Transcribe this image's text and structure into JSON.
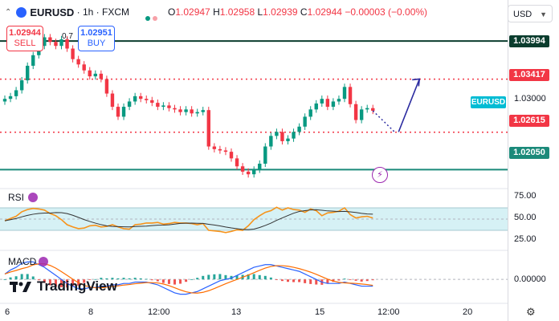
{
  "header": {
    "symbol": "EURUSD",
    "interval": "1h",
    "broker": "FXCM",
    "open_label": "O",
    "open": "1.02947",
    "high_label": "H",
    "high": "1.02958",
    "low_label": "L",
    "low": "1.02939",
    "close_label": "C",
    "close": "1.02944",
    "change": "−0.00003 (−0.00%)"
  },
  "trade": {
    "sell_price": "1.02944",
    "sell_label": "SELL",
    "buy_price": "1.02951",
    "buy_label": "BUY",
    "spread": "0.7"
  },
  "price_axis": {
    "currency": "USD",
    "ticks": [
      "1.03000"
    ],
    "symbol_tag": "EURUSD",
    "levels": [
      {
        "price": 1.03994,
        "label": "1.03994",
        "color": "#0b3d2e",
        "style": "solid"
      },
      {
        "price": 1.03417,
        "label": "1.03417",
        "color": "#f23645",
        "style": "dotted"
      },
      {
        "price": 1.02615,
        "label": "1.02615",
        "color": "#f23645",
        "style": "dotted"
      },
      {
        "price": 1.0205,
        "label": "1.02050",
        "color": "#1b8a7a",
        "style": "solid"
      }
    ]
  },
  "rsi": {
    "label": "RSI",
    "ticks": [
      "75.00",
      "50.00",
      "25.00"
    ],
    "band": [
      30,
      70
    ]
  },
  "macd": {
    "label": "MACD",
    "tick": "0.00000"
  },
  "time_axis": {
    "labels": [
      "6",
      "8",
      "12:00",
      "13",
      "15",
      "12:00",
      "20"
    ]
  },
  "branding": {
    "logo_text": "TradingView"
  },
  "colors": {
    "up": "#089981",
    "down": "#f23645",
    "rsi_line": "#f7931a",
    "rsi_ma": "#333333",
    "macd_line": "#2962ff",
    "signal_line": "#ff6d00",
    "arrow": "#2b2ba0"
  },
  "chart_data": {
    "type": "candlestick",
    "timeframe": "1h",
    "price_range": [
      1.018,
      1.0425
    ],
    "close_series": [
      1.0312,
      1.0316,
      1.0325,
      1.034,
      1.0362,
      1.0378,
      1.0392,
      1.0405,
      1.0398,
      1.0392,
      1.0402,
      1.0388,
      1.0372,
      1.0364,
      1.0355,
      1.0346,
      1.035,
      1.0342,
      1.032,
      1.03,
      1.0285,
      1.03,
      1.0308,
      1.0316,
      1.0312,
      1.031,
      1.0306,
      1.03,
      1.0302,
      1.0298,
      1.0296,
      1.0292,
      1.0296,
      1.029,
      1.0292,
      1.0295,
      1.024,
      1.0236,
      1.0234,
      1.0232,
      1.0222,
      1.021,
      1.0202,
      1.0198,
      1.0205,
      1.0214,
      1.024,
      1.0256,
      1.0262,
      1.0248,
      1.0252,
      1.0262,
      1.027,
      1.0285,
      1.0296,
      1.0305,
      1.0312,
      1.03,
      1.0308,
      1.0312,
      1.033,
      1.0304,
      1.028,
      1.0296,
      1.0298,
      1.0294
    ],
    "forecast": {
      "from": 1.0294,
      "via": 1.0262,
      "to": 1.0342
    },
    "rsi_range": [
      0,
      100
    ],
    "rsi_values": [
      47,
      51,
      55,
      63,
      67,
      69,
      68,
      66,
      60,
      56,
      49,
      40,
      36,
      33,
      34,
      38,
      39,
      36,
      37,
      40,
      36,
      33,
      32,
      40,
      41,
      43,
      43,
      44,
      41,
      42,
      44,
      43,
      43,
      42,
      40,
      42,
      30,
      29,
      28,
      26,
      28,
      31,
      30,
      38,
      49,
      56,
      62,
      65,
      71,
      66,
      70,
      67,
      66,
      62,
      68,
      65,
      56,
      61,
      62,
      64,
      70,
      58,
      52,
      54,
      55,
      52
    ],
    "macd_values": [
      0.0004,
      0.0007,
      0.0009,
      0.0012,
      0.0013,
      0.0013,
      0.0011,
      0.0009,
      0.0006,
      0.0003,
      0.0,
      -0.0003,
      -0.0005,
      -0.0007,
      -0.0007,
      -0.0006,
      -0.0006,
      -0.0005,
      -0.0005,
      -0.0004,
      -0.0004,
      -0.0003,
      -0.0003,
      -0.0002,
      -0.0002,
      -0.0002,
      -0.0003,
      -0.0004,
      -0.0006,
      -0.0008,
      -0.001,
      -0.0011,
      -0.0011,
      -0.001,
      -0.0009,
      -0.0007,
      -0.0005,
      -0.0003,
      -0.0001,
      0.0,
      0.0001,
      0.0003,
      0.0005,
      0.0007,
      0.0009,
      0.001,
      0.0011,
      0.0011,
      0.001,
      0.0009,
      0.0008,
      0.0007,
      0.0006,
      0.0004,
      0.0002,
      0.0,
      -0.0002,
      -0.0003,
      -0.0003,
      -0.0003,
      -0.0002,
      -0.0003,
      -0.0004,
      -0.0005,
      -0.0005,
      -0.0005
    ],
    "macd_range": [
      -0.0016,
      0.0018
    ]
  }
}
